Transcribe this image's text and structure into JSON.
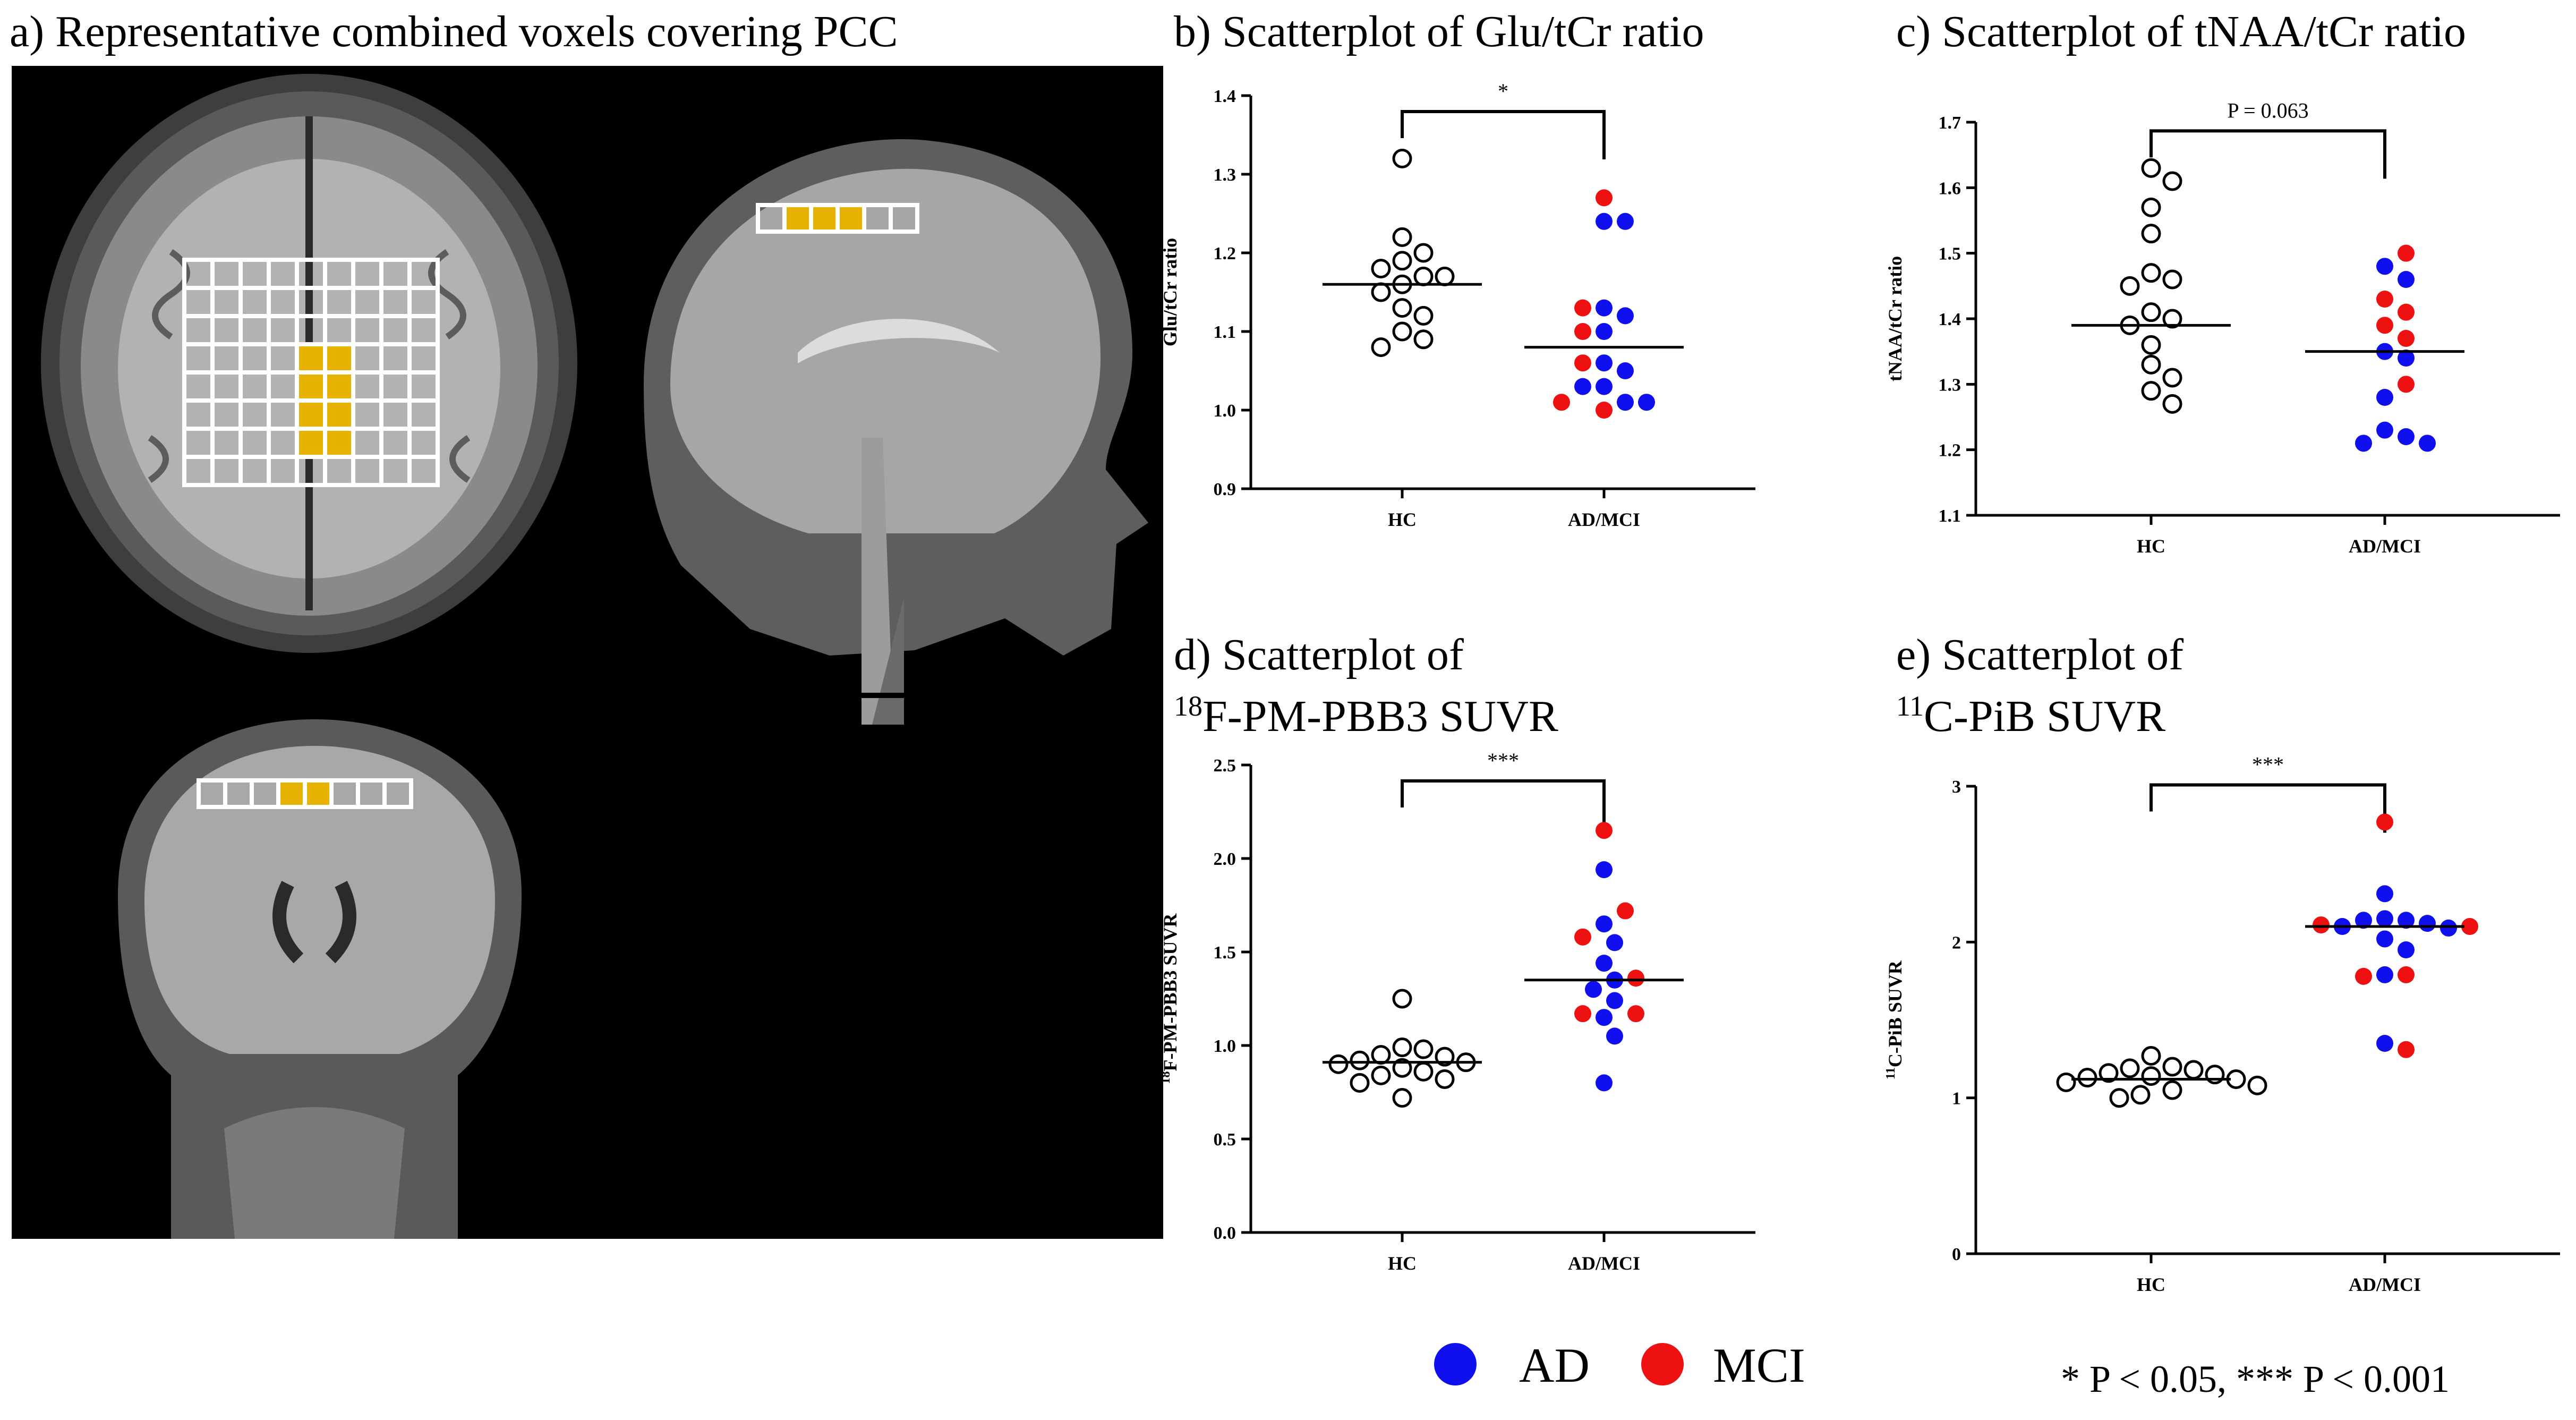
{
  "panel_a": {
    "title": "a) Representative combined voxels covering PCC",
    "views": [
      "axial-view",
      "sagittal-view",
      "coronal-view"
    ],
    "voxel_color": "#e8b200",
    "grid_color": "#ffffff"
  },
  "legend": {
    "items": [
      {
        "label": "AD",
        "color": "#1010ee"
      },
      {
        "label": "MCI",
        "color": "#ee1111"
      }
    ]
  },
  "footnote": "* P < 0.05, *** P < 0.001",
  "chart_data": [
    {
      "id": "b",
      "type": "scatter",
      "title": "b) Scatterplot of Glu/tCr ratio",
      "ylabel": "Glu/tCr ratio",
      "categories": [
        "HC",
        "AD/MCI"
      ],
      "ylim": [
        0.9,
        1.4
      ],
      "yticks": [
        "0.9",
        "1.0",
        "1.1",
        "1.2",
        "1.3",
        "1.4"
      ],
      "significance": "*",
      "medians": [
        1.16,
        1.08
      ],
      "hc_points": [
        1.32,
        1.22,
        1.2,
        1.19,
        1.18,
        1.17,
        1.17,
        1.16,
        1.15,
        1.13,
        1.12,
        1.1,
        1.09,
        1.08
      ],
      "ad_points": [
        1.24,
        1.24,
        1.13,
        1.12,
        1.1,
        1.06,
        1.05,
        1.03,
        1.03,
        1.01,
        1.01
      ],
      "mci_points": [
        1.27,
        1.13,
        1.1,
        1.06,
        1.01,
        1.0
      ]
    },
    {
      "id": "c",
      "type": "scatter",
      "title": "c) Scatterplot of tNAA/tCr ratio",
      "ylabel": "tNAA/tCr ratio",
      "categories": [
        "HC",
        "AD/MCI"
      ],
      "ylim": [
        1.1,
        1.7
      ],
      "yticks": [
        "1.1",
        "1.2",
        "1.3",
        "1.4",
        "1.5",
        "1.6",
        "1.7"
      ],
      "significance": "P = 0.063",
      "medians": [
        1.39,
        1.35
      ],
      "hc_points": [
        1.63,
        1.61,
        1.57,
        1.53,
        1.47,
        1.46,
        1.45,
        1.41,
        1.4,
        1.39,
        1.36,
        1.33,
        1.31,
        1.29,
        1.27
      ],
      "ad_points": [
        1.48,
        1.46,
        1.35,
        1.34,
        1.28,
        1.23,
        1.22,
        1.21,
        1.21
      ],
      "mci_points": [
        1.5,
        1.43,
        1.41,
        1.39,
        1.37,
        1.3
      ]
    },
    {
      "id": "d",
      "type": "scatter",
      "title_line1": "d) Scatterplot of",
      "title_sup": "18",
      "title_line2": "F-PM-PBB3 SUVR",
      "ylabel_sup": "18",
      "ylabel": "F-PM-PBB3 SUVR",
      "categories": [
        "HC",
        "AD/MCI"
      ],
      "ylim": [
        0.0,
        2.5
      ],
      "yticks": [
        "0.0",
        "0.5",
        "1.0",
        "1.5",
        "2.0",
        "2.5"
      ],
      "significance": "***",
      "medians": [
        0.91,
        1.35
      ],
      "hc_points": [
        1.25,
        0.99,
        0.98,
        0.95,
        0.94,
        0.92,
        0.91,
        0.9,
        0.88,
        0.86,
        0.84,
        0.82,
        0.8,
        0.72
      ],
      "ad_points": [
        1.94,
        1.65,
        1.55,
        1.44,
        1.35,
        1.3,
        1.24,
        1.15,
        1.05,
        0.8
      ],
      "mci_points": [
        2.15,
        1.72,
        1.58,
        1.36,
        1.17,
        1.17
      ]
    },
    {
      "id": "e",
      "type": "scatter",
      "title_line1": "e) Scatterplot of",
      "title_sup": "11",
      "title_line2": "C-PiB SUVR",
      "ylabel_sup": "11",
      "ylabel": "C-PiB SUVR",
      "categories": [
        "HC",
        "AD/MCI"
      ],
      "ylim": [
        0,
        3
      ],
      "yticks": [
        "0",
        "1",
        "2",
        "3"
      ],
      "significance": "***",
      "medians": [
        1.12,
        2.1
      ],
      "hc_points": [
        1.27,
        1.2,
        1.19,
        1.18,
        1.16,
        1.15,
        1.14,
        1.13,
        1.12,
        1.1,
        1.08,
        1.05,
        1.02,
        1.0
      ],
      "ad_points": [
        2.31,
        2.15,
        2.14,
        2.14,
        2.12,
        2.1,
        2.09,
        2.02,
        1.95,
        1.79,
        1.35
      ],
      "mci_points": [
        2.77,
        2.11,
        2.1,
        1.79,
        1.78,
        1.31
      ]
    }
  ]
}
